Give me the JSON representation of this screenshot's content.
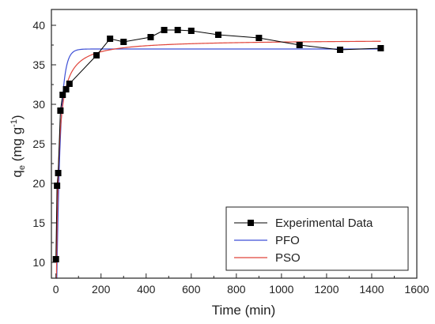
{
  "chart_data": {
    "type": "line",
    "xlabel": "Time (min)",
    "ylabel_main": "q",
    "ylabel_sub": "e",
    "ylabel_unit_pre": " (mg g",
    "ylabel_unit_sup": "-1",
    "ylabel_unit_post": ")",
    "xlim": [
      -20,
      1600
    ],
    "ylim": [
      8,
      42
    ],
    "xticks": [
      0,
      200,
      400,
      600,
      800,
      1000,
      1200,
      1400,
      1600
    ],
    "yticks": [
      10,
      15,
      20,
      25,
      30,
      35,
      40
    ],
    "grid": false,
    "legend_position": "bottom-right",
    "series": [
      {
        "name": "Experimental Data",
        "color": "#000000",
        "style": "line-with-square-markers",
        "x": [
          0,
          5,
          10,
          20,
          30,
          45,
          60,
          180,
          240,
          300,
          420,
          480,
          540,
          600,
          720,
          900,
          1080,
          1260,
          1440
        ],
        "y": [
          10.4,
          19.7,
          21.3,
          29.2,
          31.2,
          31.9,
          32.6,
          36.2,
          38.3,
          37.9,
          38.5,
          39.4,
          39.4,
          39.3,
          38.8,
          38.4,
          37.5,
          36.9,
          37.1
        ]
      },
      {
        "name": "PFO",
        "color": "#3d4fd6",
        "style": "line",
        "model": "pfo",
        "qe": 37.0,
        "k": 0.06,
        "xmax": 1440
      },
      {
        "name": "PSO",
        "color": "#e0443a",
        "style": "line",
        "model": "pso",
        "qe": 38.2,
        "k": 0.0031,
        "xmax": 1440
      }
    ]
  }
}
